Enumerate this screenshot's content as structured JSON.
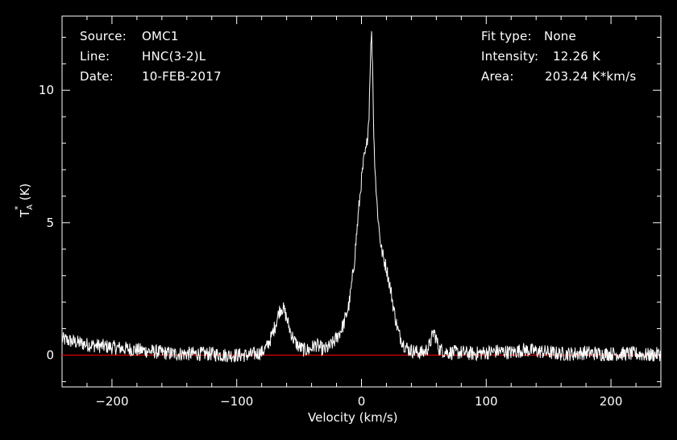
{
  "header": {
    "source_label": "Source:",
    "source_value": "OMC1",
    "line_label": "Line:",
    "line_value": "HNC(3-2)L",
    "date_label": "Date:",
    "date_value": "10-FEB-2017",
    "fit_label": "Fit type:",
    "fit_value": "None",
    "intensity_label": "Intensity:",
    "intensity_value": "12.26 K",
    "area_label": "Area:",
    "area_value": "203.24 K*km/s"
  },
  "chart_data": {
    "type": "line",
    "xlabel": "Velocity (km/s)",
    "ylabel": "TA* (K)",
    "ylabel_parts": {
      "main": "T",
      "sub": "A",
      "sup": "*",
      "unit": " (K)"
    },
    "xlim": [
      -240,
      240
    ],
    "ylim": [
      -1.2,
      12.8
    ],
    "xticks": [
      -200,
      -100,
      0,
      100,
      200
    ],
    "xtick_labels": [
      "−200",
      "−100",
      "0",
      "100",
      "200"
    ],
    "yticks": [
      0,
      5,
      10
    ],
    "ytick_labels": [
      "0",
      "5",
      "10"
    ],
    "grid": false,
    "colors": {
      "background": "#000000",
      "spectrum": "#ffffff",
      "baseline": "#e00000",
      "axes": "#ffffff"
    },
    "baseline_y": 0,
    "series": [
      {
        "x": [
          -240,
          -230,
          -220,
          -210,
          -200,
          -190,
          -180,
          -170,
          -160,
          -150,
          -140,
          -130,
          -120,
          -110,
          -100,
          -90,
          -85,
          -80,
          -76,
          -72,
          -68,
          -66,
          -64,
          -62,
          -60,
          -57,
          -54,
          -50,
          -46,
          -42,
          -38,
          -36,
          -34,
          -30,
          -26,
          -22,
          -18,
          -14,
          -10,
          -8,
          -6,
          -4,
          -2,
          0,
          2,
          4,
          6,
          7,
          8,
          9,
          10,
          12,
          14,
          16,
          18,
          20,
          22,
          24,
          26,
          28,
          30,
          34,
          38,
          42,
          46,
          50,
          54,
          56,
          58,
          60,
          62,
          66,
          70,
          80,
          90,
          100,
          110,
          120,
          130,
          140,
          150,
          160,
          170,
          180,
          190,
          200,
          210,
          220,
          230,
          240
        ],
        "y": [
          0.6,
          0.5,
          0.4,
          0.35,
          0.3,
          0.25,
          0.2,
          0.15,
          0.1,
          0.05,
          0.05,
          0.05,
          0.05,
          0.0,
          0.0,
          0.0,
          0.05,
          0.1,
          0.3,
          0.7,
          1.3,
          1.65,
          1.8,
          1.7,
          1.4,
          0.9,
          0.55,
          0.3,
          0.2,
          0.2,
          0.35,
          0.4,
          0.3,
          0.2,
          0.3,
          0.5,
          0.8,
          1.2,
          1.9,
          2.6,
          3.4,
          4.5,
          5.6,
          6.6,
          7.4,
          7.8,
          9.0,
          11.0,
          12.26,
          10.8,
          8.0,
          6.0,
          4.8,
          4.0,
          3.6,
          3.3,
          2.8,
          2.3,
          1.7,
          1.2,
          0.8,
          0.4,
          0.2,
          0.15,
          0.1,
          0.1,
          0.3,
          0.6,
          0.9,
          0.6,
          0.25,
          0.15,
          0.1,
          0.1,
          0.05,
          0.1,
          0.15,
          0.1,
          0.2,
          0.15,
          0.1,
          0.05,
          0.05,
          0.1,
          0.05,
          0.05,
          0.05,
          0.05,
          0.0,
          0.05
        ]
      }
    ]
  }
}
